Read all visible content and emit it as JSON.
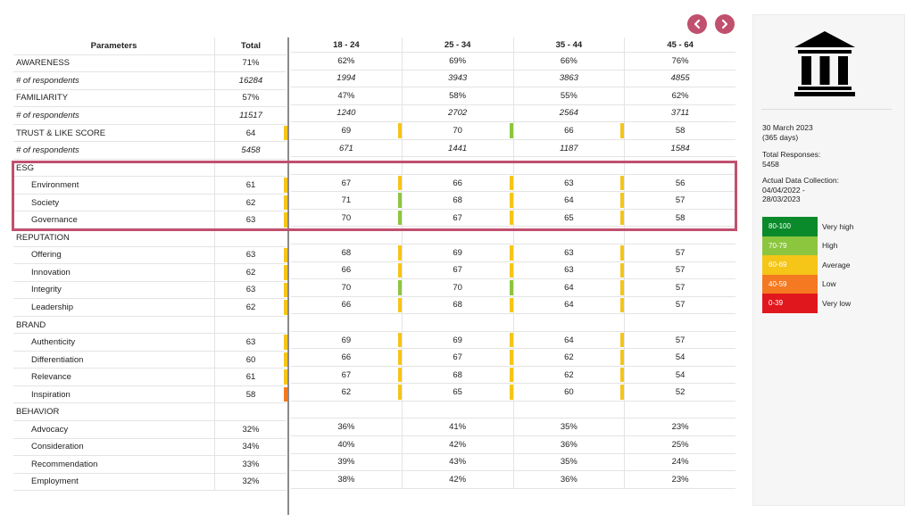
{
  "nav": {
    "prev_icon": "chevron-left-icon",
    "next_icon": "chevron-right-icon",
    "color": "#c0506e"
  },
  "columns": {
    "parameters": "Parameters",
    "total": "Total",
    "groups": [
      "18 - 24",
      "25 - 34",
      "35 - 44",
      "45 - 64"
    ]
  },
  "rows": [
    {
      "label": "AWARENESS",
      "total": "71%",
      "values": [
        "62%",
        "69%",
        "66%",
        "76%"
      ],
      "kind": "section"
    },
    {
      "label": "# of respondents",
      "total": "16284",
      "values": [
        "1994",
        "3943",
        "3863",
        "4855"
      ],
      "kind": "italic"
    },
    {
      "label": "FAMILIARITY",
      "total": "57%",
      "values": [
        "47%",
        "58%",
        "55%",
        "62%"
      ],
      "kind": "section"
    },
    {
      "label": "# of respondents",
      "total": "11517",
      "values": [
        "1240",
        "2702",
        "2564",
        "3711"
      ],
      "kind": "italic"
    },
    {
      "label": "TRUST & LIKE SCORE",
      "total": "64",
      "total_color": "#f5c518",
      "values": [
        "69",
        "70",
        "66",
        "58"
      ],
      "value_colors": [
        "#f5c518",
        "#8cc63f",
        "#f5c518",
        ""
      ],
      "kind": "section"
    },
    {
      "label": "# of respondents",
      "total": "5458",
      "values": [
        "671",
        "1441",
        "1187",
        "1584"
      ],
      "kind": "italic"
    },
    {
      "label": "ESG",
      "total": "",
      "values": [
        "",
        "",
        "",
        ""
      ],
      "kind": "group"
    },
    {
      "label": "Environment",
      "total": "61",
      "total_color": "#f5c518",
      "values": [
        "67",
        "66",
        "63",
        "56"
      ],
      "value_colors": [
        "#f5c518",
        "#f5c518",
        "#f5c518",
        ""
      ],
      "kind": "child"
    },
    {
      "label": "Society",
      "total": "62",
      "total_color": "#f5c518",
      "values": [
        "71",
        "68",
        "64",
        "57"
      ],
      "value_colors": [
        "#8cc63f",
        "#f5c518",
        "#f5c518",
        ""
      ],
      "kind": "child"
    },
    {
      "label": "Governance",
      "total": "63",
      "total_color": "#f5c518",
      "values": [
        "70",
        "67",
        "65",
        "58"
      ],
      "value_colors": [
        "#8cc63f",
        "#f5c518",
        "#f5c518",
        ""
      ],
      "kind": "child"
    },
    {
      "label": "REPUTATION",
      "total": "",
      "values": [
        "",
        "",
        "",
        ""
      ],
      "kind": "group"
    },
    {
      "label": "Offering",
      "total": "63",
      "total_color": "#f5c518",
      "values": [
        "68",
        "69",
        "63",
        "57"
      ],
      "value_colors": [
        "#f5c518",
        "#f5c518",
        "#f5c518",
        ""
      ],
      "kind": "child"
    },
    {
      "label": "Innovation",
      "total": "62",
      "total_color": "#f5c518",
      "values": [
        "66",
        "67",
        "63",
        "57"
      ],
      "value_colors": [
        "#f5c518",
        "#f5c518",
        "#f5c518",
        ""
      ],
      "kind": "child"
    },
    {
      "label": "Integrity",
      "total": "63",
      "total_color": "#f5c518",
      "values": [
        "70",
        "70",
        "64",
        "57"
      ],
      "value_colors": [
        "#8cc63f",
        "#8cc63f",
        "#f5c518",
        ""
      ],
      "kind": "child"
    },
    {
      "label": "Leadership",
      "total": "62",
      "total_color": "#f5c518",
      "values": [
        "66",
        "68",
        "64",
        "57"
      ],
      "value_colors": [
        "#f5c518",
        "#f5c518",
        "#f5c518",
        ""
      ],
      "kind": "child"
    },
    {
      "label": "BRAND",
      "total": "",
      "values": [
        "",
        "",
        "",
        ""
      ],
      "kind": "group"
    },
    {
      "label": "Authenticity",
      "total": "63",
      "total_color": "#f5c518",
      "values": [
        "69",
        "69",
        "64",
        "57"
      ],
      "value_colors": [
        "#f5c518",
        "#f5c518",
        "#f5c518",
        ""
      ],
      "kind": "child"
    },
    {
      "label": "Differentiation",
      "total": "60",
      "total_color": "#f5c518",
      "values": [
        "66",
        "67",
        "62",
        "54"
      ],
      "value_colors": [
        "#f5c518",
        "#f5c518",
        "#f5c518",
        ""
      ],
      "kind": "child"
    },
    {
      "label": "Relevance",
      "total": "61",
      "total_color": "#f5c518",
      "values": [
        "67",
        "68",
        "62",
        "54"
      ],
      "value_colors": [
        "#f5c518",
        "#f5c518",
        "#f5c518",
        ""
      ],
      "kind": "child"
    },
    {
      "label": "Inspiration",
      "total": "58",
      "total_color": "#f47920",
      "values": [
        "62",
        "65",
        "60",
        "52"
      ],
      "value_colors": [
        "#f5c518",
        "#f5c518",
        "#f5c518",
        ""
      ],
      "kind": "child"
    },
    {
      "label": "BEHAVIOR",
      "total": "",
      "values": [
        "",
        "",
        "",
        ""
      ],
      "kind": "group"
    },
    {
      "label": "Advocacy",
      "total": "32%",
      "values": [
        "36%",
        "41%",
        "35%",
        "23%"
      ],
      "kind": "child"
    },
    {
      "label": "Consideration",
      "total": "34%",
      "values": [
        "40%",
        "42%",
        "36%",
        "25%"
      ],
      "kind": "child"
    },
    {
      "label": "Recommendation",
      "total": "33%",
      "values": [
        "39%",
        "43%",
        "35%",
        "24%"
      ],
      "kind": "child"
    },
    {
      "label": "Employment",
      "total": "32%",
      "values": [
        "38%",
        "42%",
        "36%",
        "23%"
      ],
      "kind": "child"
    }
  ],
  "panel": {
    "icon": "bank-building-icon",
    "date": "30 March 2023",
    "days": "(365 days)",
    "total_responses_label": "Total Responses:",
    "total_responses": "5458",
    "collection_label": "Actual Data Collection:",
    "collection_start": "04/04/2022 -",
    "collection_end": "28/03/2023"
  },
  "legend": [
    {
      "range": "80-100",
      "label": "Very high",
      "color": "#0a8a2a"
    },
    {
      "range": "70-79",
      "label": "High",
      "color": "#8cc63f"
    },
    {
      "range": "60-69",
      "label": "Average",
      "color": "#f5c518"
    },
    {
      "range": "40-59",
      "label": "Low",
      "color": "#f47920"
    },
    {
      "range": "0-39",
      "label": "Very low",
      "color": "#e0181e"
    }
  ]
}
